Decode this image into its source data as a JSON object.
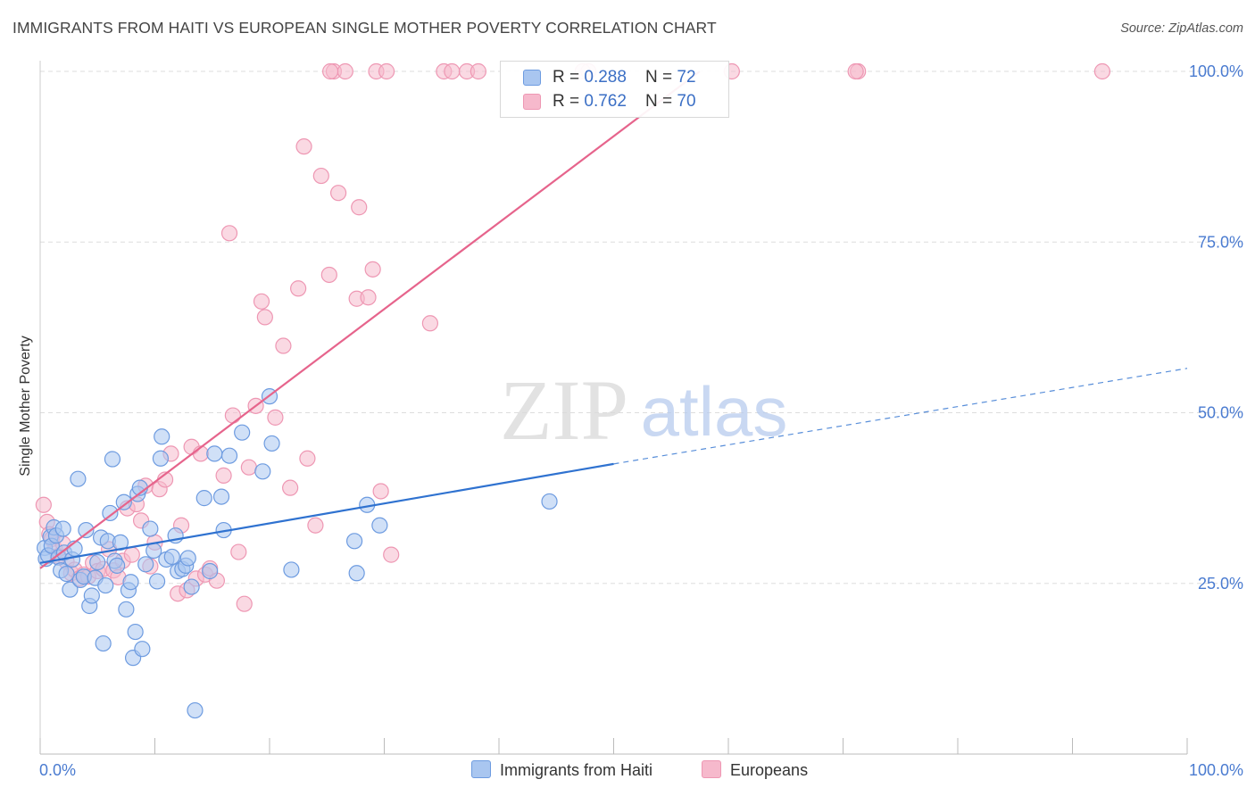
{
  "title": "IMMIGRANTS FROM HAITI VS EUROPEAN SINGLE MOTHER POVERTY CORRELATION CHART",
  "source": "Source: ZipAtlas.com",
  "watermark": {
    "zip": "ZIP",
    "atlas": "atlas"
  },
  "colors": {
    "blue_fill": "#a9c6f0",
    "blue_stroke": "#6d9be0",
    "blue_line": "#2f72d0",
    "pink_fill": "#f6b9cc",
    "pink_stroke": "#ee97b3",
    "pink_line": "#e6648c",
    "axis_text": "#4a7bd0",
    "grid": "#dddddd"
  },
  "legend_top": [
    {
      "r_label": "R = ",
      "r_value": "0.288",
      "n_label": "N = ",
      "n_value": "72",
      "color": "blue"
    },
    {
      "r_label": "R = ",
      "r_value": "0.762",
      "n_label": "N = ",
      "n_value": "70",
      "color": "pink"
    }
  ],
  "legend_bottom": [
    {
      "label": "Immigrants from Haiti",
      "color": "blue"
    },
    {
      "label": "Europeans",
      "color": "pink"
    }
  ],
  "chart_data": {
    "type": "scatter",
    "title": "IMMIGRANTS FROM HAITI VS EUROPEAN SINGLE MOTHER POVERTY CORRELATION CHART",
    "xlabel": "",
    "ylabel": "Single Mother Poverty",
    "xlim": [
      0,
      100
    ],
    "ylim": [
      0,
      100
    ],
    "x_tick_labels": [
      "0.0%",
      "100.0%"
    ],
    "y_ticks": [
      25,
      50,
      75,
      100
    ],
    "y_tick_labels": [
      "25.0%",
      "50.0%",
      "75.0%",
      "100.0%"
    ],
    "grid": "horizontal dashed",
    "legend": "top-center and bottom",
    "series": [
      {
        "name": "Immigrants from Haiti",
        "color": "blue",
        "trend": {
          "x": [
            0,
            50
          ],
          "y": [
            28.0,
            42.5
          ],
          "dashed_extension_to": [
            100,
            56.5
          ]
        },
        "points": [
          [
            0.4,
            30.2
          ],
          [
            0.5,
            28.6
          ],
          [
            0.7,
            29.1
          ],
          [
            0.9,
            31.8
          ],
          [
            1.0,
            30.5
          ],
          [
            1.2,
            33.2
          ],
          [
            1.4,
            32.0
          ],
          [
            1.6,
            28.8
          ],
          [
            1.8,
            26.9
          ],
          [
            2.0,
            33.0
          ],
          [
            2.1,
            29.5
          ],
          [
            2.3,
            26.4
          ],
          [
            2.6,
            24.1
          ],
          [
            2.8,
            28.5
          ],
          [
            3.0,
            30.1
          ],
          [
            3.3,
            40.3
          ],
          [
            3.5,
            25.5
          ],
          [
            3.8,
            26.0
          ],
          [
            4.0,
            32.8
          ],
          [
            4.3,
            21.7
          ],
          [
            4.5,
            23.2
          ],
          [
            4.8,
            25.8
          ],
          [
            5.0,
            28.1
          ],
          [
            5.3,
            31.7
          ],
          [
            5.5,
            16.2
          ],
          [
            5.7,
            24.7
          ],
          [
            5.9,
            31.2
          ],
          [
            6.1,
            35.3
          ],
          [
            6.3,
            43.2
          ],
          [
            6.5,
            28.3
          ],
          [
            6.7,
            27.6
          ],
          [
            7.0,
            31.0
          ],
          [
            7.3,
            36.9
          ],
          [
            7.5,
            21.2
          ],
          [
            7.7,
            24.0
          ],
          [
            7.9,
            25.2
          ],
          [
            8.1,
            14.1
          ],
          [
            8.3,
            17.9
          ],
          [
            8.5,
            38.1
          ],
          [
            8.7,
            39.0
          ],
          [
            8.9,
            15.4
          ],
          [
            9.2,
            27.8
          ],
          [
            9.6,
            33.0
          ],
          [
            9.9,
            29.8
          ],
          [
            10.2,
            25.3
          ],
          [
            10.5,
            43.3
          ],
          [
            10.6,
            46.5
          ],
          [
            11.0,
            28.5
          ],
          [
            11.5,
            28.9
          ],
          [
            11.8,
            32.0
          ],
          [
            12.0,
            26.8
          ],
          [
            12.4,
            27.1
          ],
          [
            12.7,
            27.6
          ],
          [
            12.9,
            28.7
          ],
          [
            13.2,
            24.5
          ],
          [
            13.5,
            6.4
          ],
          [
            14.3,
            37.5
          ],
          [
            14.8,
            26.8
          ],
          [
            15.2,
            44.0
          ],
          [
            15.8,
            37.7
          ],
          [
            16.0,
            32.8
          ],
          [
            16.5,
            43.7
          ],
          [
            17.6,
            47.1
          ],
          [
            19.4,
            41.4
          ],
          [
            20.0,
            52.4
          ],
          [
            20.2,
            45.5
          ],
          [
            21.9,
            27.0
          ],
          [
            27.4,
            31.2
          ],
          [
            27.6,
            26.5
          ],
          [
            28.5,
            36.5
          ],
          [
            29.6,
            33.5
          ],
          [
            44.4,
            37.0
          ]
        ]
      },
      {
        "name": "Europeans",
        "color": "pink",
        "trend": {
          "x": [
            0,
            57.5
          ],
          "y": [
            27.2,
            100
          ]
        },
        "points": [
          [
            0.3,
            36.5
          ],
          [
            0.6,
            34.0
          ],
          [
            0.8,
            32.2
          ],
          [
            1.0,
            31.5
          ],
          [
            1.3,
            30.0
          ],
          [
            1.6,
            29.0
          ],
          [
            2.0,
            30.8
          ],
          [
            2.3,
            28.2
          ],
          [
            2.7,
            26.5
          ],
          [
            3.0,
            27.0
          ],
          [
            3.4,
            25.7
          ],
          [
            3.8,
            26.3
          ],
          [
            4.2,
            26.0
          ],
          [
            4.6,
            28.0
          ],
          [
            5.0,
            26.8
          ],
          [
            5.5,
            27.1
          ],
          [
            6.0,
            30.0
          ],
          [
            6.4,
            26.9
          ],
          [
            6.8,
            25.9
          ],
          [
            7.2,
            28.3
          ],
          [
            7.6,
            36.0
          ],
          [
            8.0,
            29.2
          ],
          [
            8.4,
            36.6
          ],
          [
            8.8,
            34.2
          ],
          [
            9.2,
            39.3
          ],
          [
            9.6,
            27.5
          ],
          [
            10.0,
            31.0
          ],
          [
            10.4,
            38.8
          ],
          [
            10.9,
            40.2
          ],
          [
            11.4,
            44.0
          ],
          [
            12.0,
            23.5
          ],
          [
            12.3,
            33.5
          ],
          [
            12.8,
            24.0
          ],
          [
            13.2,
            45.0
          ],
          [
            13.6,
            25.7
          ],
          [
            14.0,
            44.0
          ],
          [
            14.4,
            26.3
          ],
          [
            14.8,
            27.2
          ],
          [
            15.4,
            25.4
          ],
          [
            16.0,
            40.8
          ],
          [
            16.5,
            76.3
          ],
          [
            16.8,
            49.6
          ],
          [
            17.3,
            29.6
          ],
          [
            17.8,
            22.0
          ],
          [
            18.2,
            42.0
          ],
          [
            18.8,
            51.0
          ],
          [
            19.3,
            66.3
          ],
          [
            19.6,
            64.0
          ],
          [
            20.5,
            49.3
          ],
          [
            21.2,
            59.8
          ],
          [
            21.8,
            39.0
          ],
          [
            22.5,
            68.2
          ],
          [
            23.0,
            89.0
          ],
          [
            23.3,
            43.3
          ],
          [
            24.0,
            33.5
          ],
          [
            24.5,
            84.7
          ],
          [
            25.2,
            70.2
          ],
          [
            25.6,
            100
          ],
          [
            26.0,
            82.2
          ],
          [
            26.6,
            100
          ],
          [
            27.6,
            66.7
          ],
          [
            27.8,
            80.1
          ],
          [
            28.6,
            66.9
          ],
          [
            29.0,
            71.0
          ],
          [
            29.7,
            38.5
          ],
          [
            30.6,
            29.2
          ],
          [
            34.0,
            63.1
          ],
          [
            37.2,
            100
          ],
          [
            47.8,
            100
          ],
          [
            71.3,
            100
          ]
        ]
      }
    ]
  },
  "extra_top_points": [
    {
      "series": "Europeans",
      "x": [
        25.3,
        29.3,
        30.2,
        35.2,
        35.9,
        38.2,
        47.3,
        60.3,
        71.1,
        92.6
      ],
      "y": 100
    }
  ]
}
